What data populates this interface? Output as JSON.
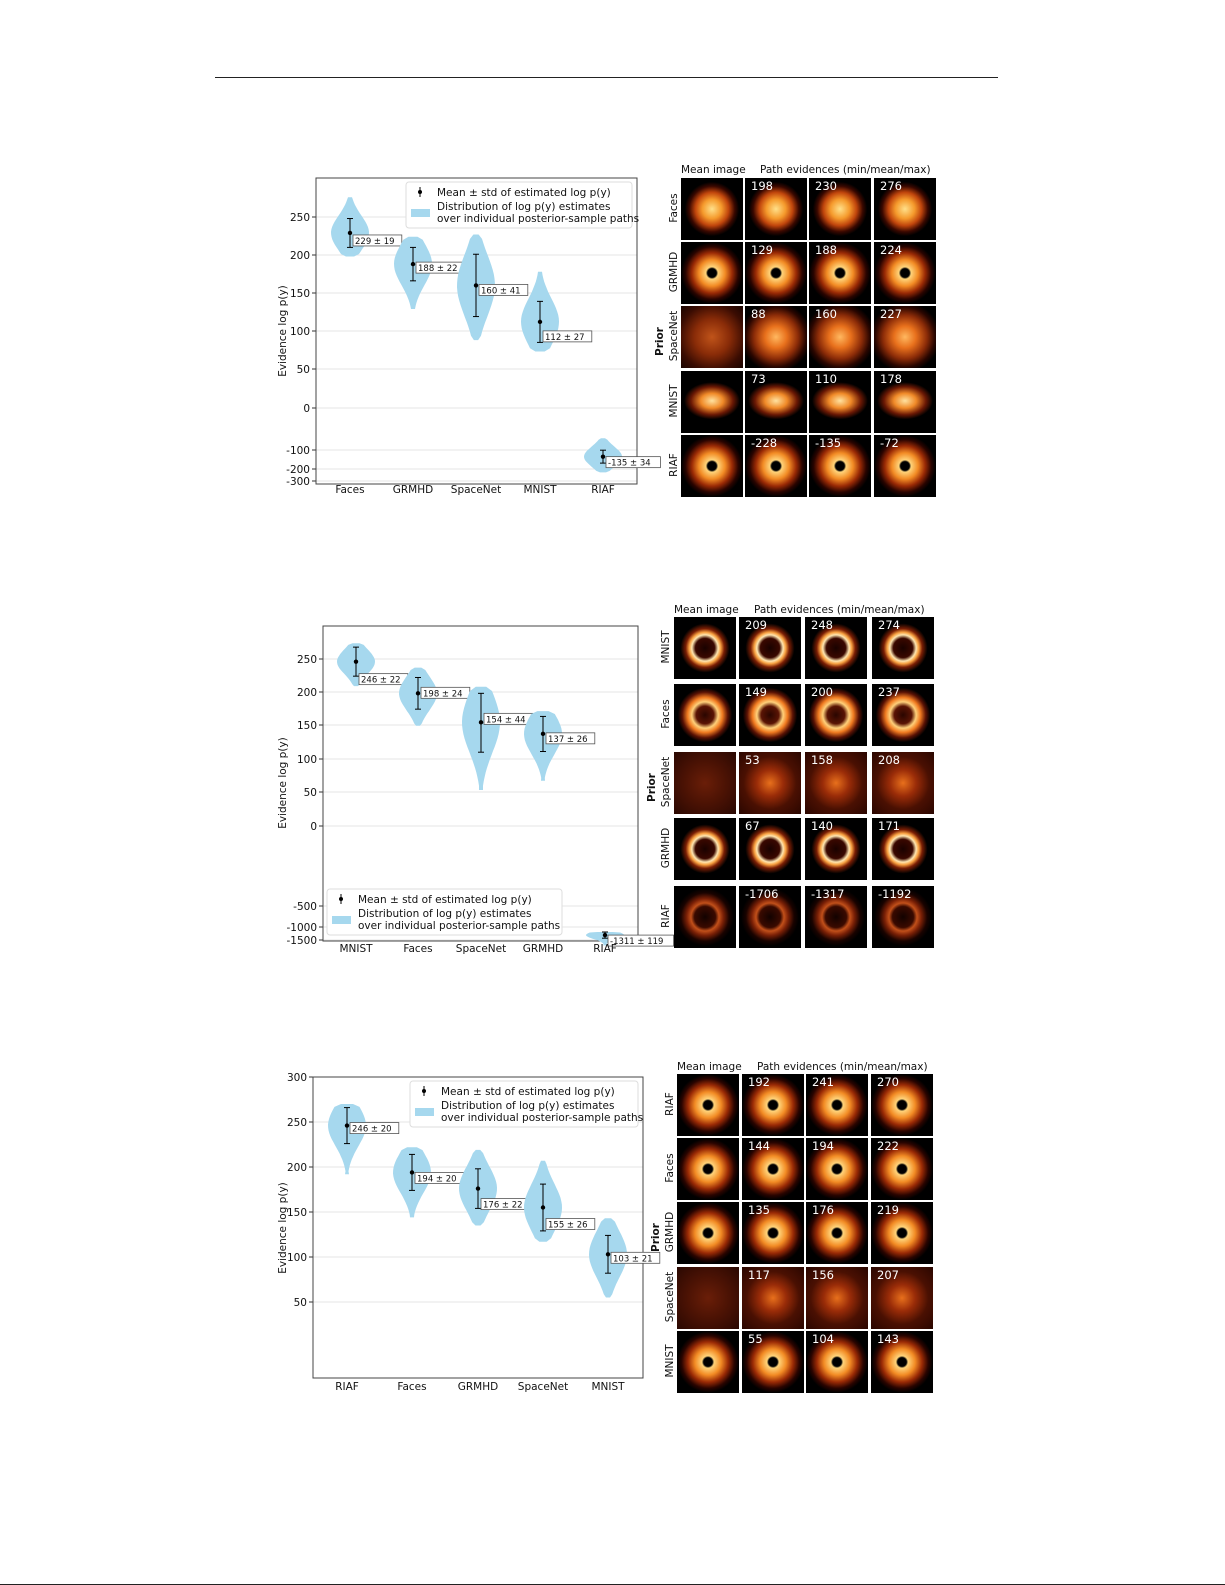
{
  "legend": {
    "mean_label": "Mean ± std of estimated log p(y)",
    "dist_line1": "Distribution of log p(y) estimates",
    "dist_line2": "over individual posterior-sample paths"
  },
  "grid_headers": {
    "mean_image": "Mean image",
    "path_evidences": "Path evidences (min/mean/max)",
    "prior": "Prior"
  },
  "colors": {
    "violin": "#a6d8ee",
    "error_bar": "#000000",
    "grid_bg": "#000000"
  },
  "chart_data": [
    {
      "type": "violin",
      "ylabel": "Evidence log p(y)",
      "categories": [
        "Faces",
        "GRMHD",
        "SpaceNet",
        "MNIST",
        "RIAF"
      ],
      "yticks": [
        -300,
        -200,
        -100,
        0,
        50,
        100,
        150,
        200,
        250
      ],
      "ytick_labels": [
        "-300",
        "-200",
        "-100",
        "0",
        "50",
        "100",
        "150",
        "200",
        "250"
      ],
      "grid": true,
      "legend_position": "top-right",
      "series": [
        {
          "category": "Faces",
          "mean": 229,
          "std": 19,
          "label": "229 ± 19",
          "min": 198,
          "max": 276
        },
        {
          "category": "GRMHD",
          "mean": 188,
          "std": 22,
          "label": "188 ± 22",
          "min": 129,
          "max": 224
        },
        {
          "category": "SpaceNet",
          "mean": 160,
          "std": 41,
          "label": "160 ± 41",
          "min": 88,
          "max": 227
        },
        {
          "category": "MNIST",
          "mean": 112,
          "std": 27,
          "label": "112 ± 27",
          "min": 73,
          "max": 178
        },
        {
          "category": "RIAF",
          "mean": -135,
          "std": 34,
          "label": "-135 ± 34",
          "min": -228,
          "max": -72
        }
      ],
      "grid_rows": [
        {
          "prior": "Faces",
          "evidences": [
            "198",
            "230",
            "276"
          ],
          "shape": "face"
        },
        {
          "prior": "GRMHD",
          "evidences": [
            "129",
            "188",
            "224"
          ],
          "shape": "ring-dot"
        },
        {
          "prior": "SpaceNet",
          "evidences": [
            "88",
            "160",
            "227"
          ],
          "shape": "blob"
        },
        {
          "prior": "MNIST",
          "evidences": [
            "73",
            "110",
            "178"
          ],
          "shape": "digit"
        },
        {
          "prior": "RIAF",
          "evidences": [
            "-228",
            "-135",
            "-72"
          ],
          "shape": "ring-dot"
        }
      ]
    },
    {
      "type": "violin",
      "ylabel": "Evidence log p(y)",
      "categories": [
        "MNIST",
        "Faces",
        "SpaceNet",
        "GRMHD",
        "RIAF"
      ],
      "yticks": [
        -1500,
        -1000,
        -500,
        0,
        50,
        100,
        150,
        200,
        250
      ],
      "ytick_labels": [
        "-1500",
        "-1000",
        "-500",
        "0",
        "50",
        "100",
        "150",
        "200",
        "250"
      ],
      "grid": true,
      "legend_position": "bottom-left",
      "series": [
        {
          "category": "MNIST",
          "mean": 246,
          "std": 22,
          "label": "246 ± 22",
          "min": 209,
          "max": 274
        },
        {
          "category": "Faces",
          "mean": 198,
          "std": 24,
          "label": "198 ± 24",
          "min": 149,
          "max": 237
        },
        {
          "category": "SpaceNet",
          "mean": 154,
          "std": 44,
          "label": "154 ± 44",
          "min": 53,
          "max": 208
        },
        {
          "category": "GRMHD",
          "mean": 137,
          "std": 26,
          "label": "137 ± 26",
          "min": 67,
          "max": 171
        },
        {
          "category": "RIAF",
          "mean": -1311,
          "std": 119,
          "label": "-1311 ± 119",
          "min": -1706,
          "max": -1192
        }
      ],
      "grid_rows": [
        {
          "prior": "MNIST",
          "evidences": [
            "209",
            "248",
            "274"
          ],
          "shape": "ring"
        },
        {
          "prior": "Faces",
          "evidences": [
            "149",
            "200",
            "237"
          ],
          "shape": "ring-bright"
        },
        {
          "prior": "SpaceNet",
          "evidences": [
            "53",
            "158",
            "208"
          ],
          "shape": "noise"
        },
        {
          "prior": "GRMHD",
          "evidences": [
            "67",
            "140",
            "171"
          ],
          "shape": "ring"
        },
        {
          "prior": "RIAF",
          "evidences": [
            "-1706",
            "-1317",
            "-1192"
          ],
          "shape": "ring-dim"
        }
      ]
    },
    {
      "type": "violin",
      "ylabel": "Evidence log p(y)",
      "categories": [
        "RIAF",
        "Faces",
        "GRMHD",
        "SpaceNet",
        "MNIST"
      ],
      "yticks": [
        50,
        100,
        150,
        200,
        250,
        300
      ],
      "ytick_labels": [
        "50",
        "100",
        "150",
        "200",
        "250",
        "300"
      ],
      "grid": true,
      "legend_position": "top-right",
      "series": [
        {
          "category": "RIAF",
          "mean": 246,
          "std": 20,
          "label": "246 ± 20",
          "min": 192,
          "max": 270
        },
        {
          "category": "Faces",
          "mean": 194,
          "std": 20,
          "label": "194 ± 20",
          "min": 144,
          "max": 222
        },
        {
          "category": "GRMHD",
          "mean": 176,
          "std": 22,
          "label": "176 ± 22",
          "min": 135,
          "max": 219
        },
        {
          "category": "SpaceNet",
          "mean": 155,
          "std": 26,
          "label": "155 ± 26",
          "min": 117,
          "max": 207
        },
        {
          "category": "MNIST",
          "mean": 103,
          "std": 21,
          "label": "103 ± 21",
          "min": 55,
          "max": 143
        }
      ],
      "grid_rows": [
        {
          "prior": "RIAF",
          "evidences": [
            "192",
            "241",
            "270"
          ],
          "shape": "ring-dot"
        },
        {
          "prior": "Faces",
          "evidences": [
            "144",
            "194",
            "222"
          ],
          "shape": "ring-dot"
        },
        {
          "prior": "GRMHD",
          "evidences": [
            "135",
            "176",
            "219"
          ],
          "shape": "ring-dot"
        },
        {
          "prior": "SpaceNet",
          "evidences": [
            "117",
            "156",
            "207"
          ],
          "shape": "noise"
        },
        {
          "prior": "MNIST",
          "evidences": [
            "55",
            "104",
            "143"
          ],
          "shape": "ring-dot"
        }
      ]
    }
  ]
}
